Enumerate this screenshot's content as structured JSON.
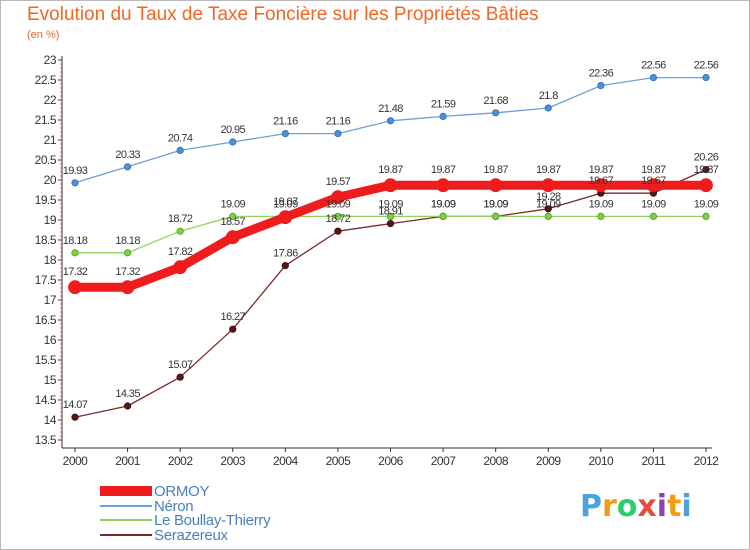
{
  "title": "Evolution du Taux de Taxe Foncière sur les Propriétés Bâties",
  "unit": "(en %)",
  "logo": {
    "letters": [
      "P",
      "r",
      "o",
      "x",
      "i",
      "t",
      "i"
    ],
    "colors": [
      "#4aa3df",
      "#f39c12",
      "#2ecc71",
      "#e74c3c",
      "#8e44ad",
      "#f39c12",
      "#4aa3df"
    ]
  },
  "chart_data": {
    "type": "line",
    "title": "Evolution du Taux de Taxe Foncière sur les Propriétés Bâties",
    "ylabel": "(en %)",
    "xlabel": "",
    "x": [
      "2000",
      "2001",
      "2002",
      "2003",
      "2004",
      "2005",
      "2006",
      "2007",
      "2008",
      "2009",
      "2010",
      "2011",
      "2012"
    ],
    "ylim": [
      13.5,
      23
    ],
    "yticks": [
      "13.5",
      "14",
      "14.5",
      "15",
      "15.5",
      "16",
      "16.5",
      "17",
      "17.5",
      "18",
      "18.5",
      "19",
      "19.5",
      "20",
      "20.5",
      "21",
      "21.5",
      "22",
      "22.5",
      "23"
    ],
    "grid": false,
    "series": [
      {
        "name": "ORMOY",
        "color": "#ee1c1c",
        "values": [
          17.32,
          17.32,
          17.82,
          18.57,
          19.07,
          19.57,
          19.87,
          19.87,
          19.87,
          19.87,
          19.87,
          19.87,
          19.87
        ],
        "labels": [
          "17.32",
          "17.32",
          "17.82",
          "18.57",
          "19.07",
          "19.57",
          "19.87",
          "19.87",
          "19.87",
          "19.87",
          "19.87",
          "19.87",
          "19.87"
        ]
      },
      {
        "name": "Néron",
        "color": "#6f9fd8",
        "values": [
          19.93,
          20.33,
          20.74,
          20.95,
          21.16,
          21.16,
          21.48,
          21.59,
          21.68,
          21.8,
          22.36,
          22.56,
          22.56
        ],
        "labels": [
          "19.93",
          "20.33",
          "20.74",
          "20.95",
          "21.16",
          "21.16",
          "21.48",
          "21.59",
          "21.68",
          "21.8",
          "22.36",
          "22.56",
          "22.56"
        ]
      },
      {
        "name": "Le Boullay-Thierry",
        "color": "#8ed45a",
        "values": [
          18.18,
          18.18,
          18.72,
          19.09,
          19.09,
          19.09,
          19.09,
          19.09,
          19.09,
          19.09,
          19.09,
          19.09,
          19.09
        ],
        "labels": [
          "18.18",
          "18.18",
          "18.72",
          "19.09",
          "19.09",
          "19.09",
          "19.09",
          "19.09",
          "19.09",
          "19.09",
          "19.09",
          "19.09",
          "19.09"
        ]
      },
      {
        "name": "Serazereux",
        "color": "#7a2a2a",
        "values": [
          14.07,
          14.35,
          15.07,
          16.27,
          17.86,
          18.72,
          18.91,
          19.09,
          19.09,
          19.28,
          19.67,
          19.67,
          20.26
        ],
        "labels": [
          "14.07",
          "14.35",
          "15.07",
          "16.27",
          "17.86",
          "18.72",
          "18.91",
          "19.09",
          "19.09",
          "19.28",
          "19.67",
          "19.67",
          "20.26"
        ]
      }
    ],
    "legend_position": "bottom-left"
  }
}
